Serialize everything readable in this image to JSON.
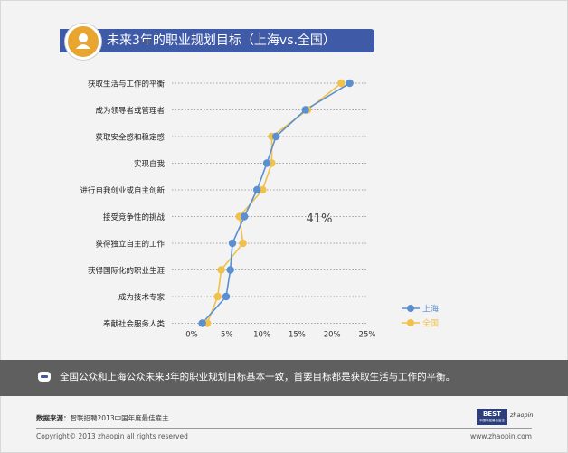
{
  "title": "未来3年的职业规划目标（上海vs.全国）",
  "summary": "全国公众和上海公众未来3年的职业规划目标基本一致，首要目标都是获取生活与工作的平衡。",
  "source_label": "数据来源：",
  "source_text": "智联招聘2013中国年度最佳雇主",
  "copyright": "Copyright© 2013 zhaopin all rights reserved",
  "website": "www.zhaopin.com",
  "logo_best": "BEST",
  "logo_sub": "中国年度最佳雇主",
  "logo_brand": "zhaopin",
  "colors": {
    "shanghai": "#5b8fcf",
    "national": "#f0c14b",
    "title_bar": "#3f5aa6",
    "icon_accent": "#e8a630",
    "band": "#5f5f5f"
  },
  "icons": {
    "title": "person-icon",
    "summary": "speech-bubble-icon"
  },
  "chart_data": {
    "type": "line",
    "orientation": "horizontal",
    "categories": [
      "获取生活与工作的平衡",
      "成为领导者或管理者",
      "获取安全感和稳定感",
      "实现自我",
      "进行自我创业或自主创新",
      "接受竞争性的挑战",
      "获得独立自主的工作",
      "获得国际化的职业生涯",
      "成为技术专家",
      "奉献社会服务人类"
    ],
    "series": [
      {
        "name": "上海",
        "color": "#5b8fcf",
        "values": [
          22.5,
          16.2,
          12.0,
          10.7,
          9.3,
          7.5,
          5.8,
          5.5,
          4.9,
          1.5
        ]
      },
      {
        "name": "全国",
        "color": "#f0c14b",
        "values": [
          21.3,
          16.5,
          11.4,
          11.4,
          10.1,
          6.8,
          7.3,
          4.2,
          3.7,
          2.2
        ]
      }
    ],
    "xlim": [
      0,
      25
    ],
    "xticks": [
      "0%",
      "5%",
      "10%",
      "15%",
      "20%",
      "25%"
    ],
    "annotation": "41%",
    "legend_position": "bottom-right",
    "grid": "dotted-horizontal"
  }
}
